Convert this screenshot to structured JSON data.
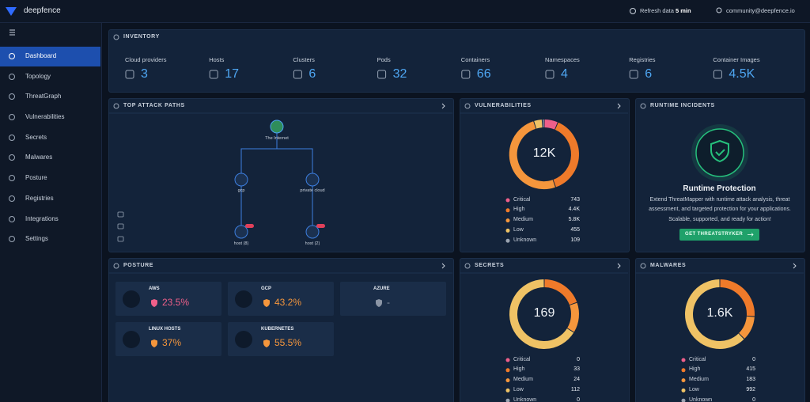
{
  "topbar": {
    "brand": "deepfence",
    "refresh_label": "Refresh data",
    "refresh_interval": "5 min",
    "user": "community@deepfence.io"
  },
  "sidebar": {
    "active": 0,
    "items": [
      "Dashboard",
      "Topology",
      "ThreatGraph",
      "Vulnerabilities",
      "Secrets",
      "Malwares",
      "Posture",
      "Registries",
      "Integrations",
      "Settings"
    ]
  },
  "inventory": {
    "title": "INVENTORY",
    "items": [
      {
        "label": "Cloud providers",
        "value": "3"
      },
      {
        "label": "Hosts",
        "value": "17"
      },
      {
        "label": "Clusters",
        "value": "6"
      },
      {
        "label": "Pods",
        "value": "32"
      },
      {
        "label": "Containers",
        "value": "66"
      },
      {
        "label": "Namespaces",
        "value": "4"
      },
      {
        "label": "Registries",
        "value": "6"
      },
      {
        "label": "Container Images",
        "value": "4.5K"
      }
    ]
  },
  "attack_paths": {
    "title": "TOP ATTACK PATHS",
    "nodes": [
      {
        "label": "The Internet"
      },
      {
        "label": "gcp"
      },
      {
        "label": "private cloud"
      },
      {
        "label": "host (8)"
      },
      {
        "label": "host (2)"
      }
    ]
  },
  "vulnerabilities": {
    "title": "VULNERABILITIES",
    "total": "12K",
    "severities": [
      {
        "name": "Critical",
        "value": 743,
        "color": "#ee5f8a"
      },
      {
        "name": "High",
        "value": 4400,
        "value_label": "4.4K",
        "color": "#ef7a2a"
      },
      {
        "name": "Medium",
        "value": 5800,
        "value_label": "5.8K",
        "color": "#f5963c"
      },
      {
        "name": "Low",
        "value": 455,
        "color": "#efc265"
      },
      {
        "name": "Unknown",
        "value": 109,
        "color": "#9aa3b0"
      }
    ]
  },
  "runtime": {
    "title": "RUNTIME INCIDENTS",
    "heading": "Runtime Protection",
    "text": "Extend ThreatMapper with runtime attack analysis, threat assessment, and targeted protection for your applications. Scalable, supported, and ready for action!",
    "button": "GET THREATSTRYKER"
  },
  "posture": {
    "title": "POSTURE",
    "providers": [
      {
        "name": "AWS",
        "value": "23.5%",
        "color": "#f0608a"
      },
      {
        "name": "GCP",
        "value": "43.2%",
        "color": "#f5963c"
      },
      {
        "name": "AZURE",
        "value": "-",
        "color": "#8b95a5"
      },
      {
        "name": "LINUX HOSTS",
        "value": "37%",
        "color": "#f5963c"
      },
      {
        "name": "KUBERNETES",
        "value": "55.5%",
        "color": "#f5963c"
      }
    ]
  },
  "secrets": {
    "title": "SECRETS",
    "total": "169",
    "severities": [
      {
        "name": "Critical",
        "value": 0,
        "color": "#ee5f8a"
      },
      {
        "name": "High",
        "value": 33,
        "color": "#ef7a2a"
      },
      {
        "name": "Medium",
        "value": 24,
        "color": "#f5963c"
      },
      {
        "name": "Low",
        "value": 112,
        "color": "#efc265"
      },
      {
        "name": "Unknown",
        "value": 0,
        "color": "#9aa3b0"
      }
    ]
  },
  "malwares": {
    "title": "MALWARES",
    "total": "1.6K",
    "severities": [
      {
        "name": "Critical",
        "value": 0,
        "color": "#ee5f8a"
      },
      {
        "name": "High",
        "value": 415,
        "color": "#ef7a2a"
      },
      {
        "name": "Medium",
        "value": 183,
        "color": "#f5963c"
      },
      {
        "name": "Low",
        "value": 992,
        "color": "#efc265"
      },
      {
        "name": "Unknown",
        "value": 0,
        "color": "#9aa3b0"
      }
    ]
  }
}
